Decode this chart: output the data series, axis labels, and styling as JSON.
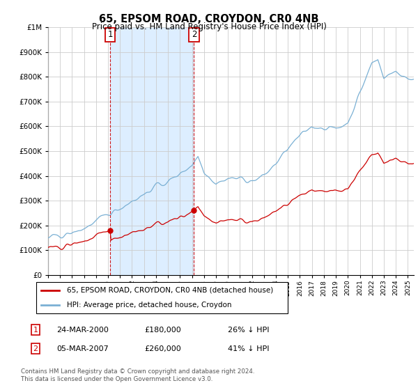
{
  "title": "65, EPSOM ROAD, CROYDON, CR0 4NB",
  "subtitle": "Price paid vs. HM Land Registry's House Price Index (HPI)",
  "legend_label_red": "65, EPSOM ROAD, CROYDON, CR0 4NB (detached house)",
  "legend_label_blue": "HPI: Average price, detached house, Croydon",
  "footer": "Contains HM Land Registry data © Crown copyright and database right 2024.\nThis data is licensed under the Open Government Licence v3.0.",
  "annotation1_date": "24-MAR-2000",
  "annotation1_price": "£180,000",
  "annotation1_hpi": "26% ↓ HPI",
  "annotation2_date": "05-MAR-2007",
  "annotation2_price": "£260,000",
  "annotation2_hpi": "41% ↓ HPI",
  "red_color": "#cc0000",
  "blue_color": "#7ab0d4",
  "shade_color": "#ddeeff",
  "annotation_color": "#cc0000",
  "grid_color": "#cccccc",
  "background_color": "#ffffff",
  "sale1_x": 2000.19,
  "sale1_y": 180000,
  "sale2_x": 2007.17,
  "sale2_y": 260000,
  "ylim": [
    0,
    1000000
  ],
  "xlim_start": 1995.0,
  "xlim_end": 2025.5
}
